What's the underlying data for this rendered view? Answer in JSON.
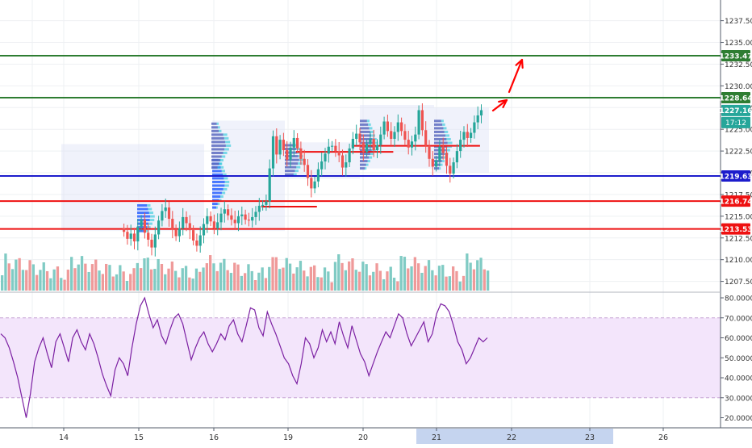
{
  "chart_data": [
    {
      "type": "candlestick",
      "title": "",
      "xlabel": "",
      "ylabel": "",
      "ylim": [
        1206.3,
        1240.2
      ],
      "grid": true,
      "x_ticks": [
        "14",
        "15",
        "16",
        "19",
        "20",
        "21",
        "22",
        "23",
        "26"
      ],
      "highlighted_x_tick": "21",
      "y_ticks": [
        "1207.50",
        "1210.00",
        "1212.50",
        "1215.00",
        "1217.50",
        "1220.00",
        "1222.50",
        "1225.00",
        "1227.50",
        "1230.00",
        "1232.50",
        "1235.00",
        "1237.50"
      ],
      "close_series": [
        1213.2,
        1212.4,
        1213.0,
        1212.1,
        1213.8,
        1214.6,
        1213.1,
        1212.3,
        1211.4,
        1212.9,
        1214.5,
        1215.6,
        1216.0,
        1214.7,
        1213.5,
        1212.7,
        1213.6,
        1214.9,
        1214.2,
        1213.4,
        1212.2,
        1211.6,
        1212.8,
        1214.1,
        1215.0,
        1214.4,
        1213.6,
        1214.3,
        1215.3,
        1215.8,
        1215.1,
        1214.6,
        1214.2,
        1215.0,
        1215.2,
        1214.6,
        1214.5,
        1214.9,
        1215.5,
        1216.2,
        1216.3,
        1216.7,
        1220.5,
        1224.2,
        1222.1,
        1223.8,
        1222.6,
        1221.5,
        1222.9,
        1224.0,
        1222.8,
        1221.6,
        1220.9,
        1219.4,
        1218.2,
        1219.0,
        1220.4,
        1221.3,
        1222.2,
        1223.0,
        1223.1,
        1222.5,
        1222.0,
        1220.6,
        1221.2,
        1222.8,
        1223.9,
        1224.5,
        1223.5,
        1222.4,
        1223.3,
        1223.9,
        1222.6,
        1223.2,
        1224.4,
        1225.9,
        1224.8,
        1223.9,
        1224.7,
        1225.8,
        1224.8,
        1223.8,
        1222.9,
        1223.6,
        1224.4,
        1227.2,
        1224.9,
        1223.1,
        1221.6,
        1220.7,
        1221.4,
        1223.0,
        1222.3,
        1220.8,
        1219.9,
        1221.2,
        1222.5,
        1223.8,
        1224.7,
        1224.0,
        1224.6,
        1225.8,
        1226.6,
        1227.2
      ],
      "hlines": [
        {
          "label": "1233.47",
          "value": 1233.47,
          "color": "#2e7d32"
        },
        {
          "label": "1228.64",
          "value": 1228.64,
          "color": "#2e7d32"
        },
        {
          "label": "1219.63",
          "value": 1219.63,
          "color": "#1c1ccc"
        },
        {
          "label": "1216.74",
          "value": 1216.74,
          "color": "#ee1111"
        },
        {
          "label": "1213.53",
          "value": 1213.53,
          "color": "#ee1111"
        }
      ],
      "poc_segments": [
        {
          "value": 1216.1,
          "from_index": 40,
          "to_index": 56
        },
        {
          "value": 1222.4,
          "from_index": 50,
          "to_index": 78
        },
        {
          "value": 1223.1,
          "from_index": 66,
          "to_index": 103
        }
      ],
      "current_price": {
        "label": "1227.16",
        "value": 1227.16,
        "color": "#26a69a"
      },
      "countdown": {
        "label": "17:12",
        "color": "#26a69a"
      },
      "up_color": "#26a69a",
      "down_color": "#ef5350"
    },
    {
      "type": "line",
      "title": "",
      "xlabel": "",
      "ylabel": "",
      "ylim": [
        16.5,
        82.5
      ],
      "band": [
        30,
        70
      ],
      "y_ticks": [
        "20.0000",
        "30.0000",
        "40.0000",
        "50.0000",
        "60.0000",
        "70.0000",
        "80.0000"
      ],
      "values": [
        62,
        60,
        55,
        48,
        40,
        30,
        20,
        32,
        48,
        55,
        60,
        52,
        45,
        58,
        62,
        55,
        48,
        60,
        64,
        58,
        54,
        62,
        57,
        50,
        42,
        36,
        31,
        44,
        50,
        47,
        41,
        55,
        67,
        76,
        80,
        72,
        65,
        69,
        61,
        57,
        64,
        70,
        72,
        67,
        58,
        49,
        55,
        60,
        63,
        57,
        53,
        57,
        62,
        59,
        66,
        69,
        62,
        58,
        66,
        75,
        74,
        65,
        61,
        73,
        67,
        62,
        56,
        50,
        47,
        41,
        37,
        47,
        60,
        57,
        50,
        55,
        64,
        58,
        63,
        57,
        68,
        61,
        55,
        66,
        59,
        52,
        48,
        41,
        47,
        53,
        58,
        63,
        60,
        66,
        72,
        70,
        62,
        56,
        60,
        64,
        68,
        58,
        62,
        72,
        77,
        76,
        73,
        66,
        58,
        54,
        47,
        50,
        55,
        60,
        58,
        60
      ],
      "line_color": "#7b1fa2"
    }
  ]
}
